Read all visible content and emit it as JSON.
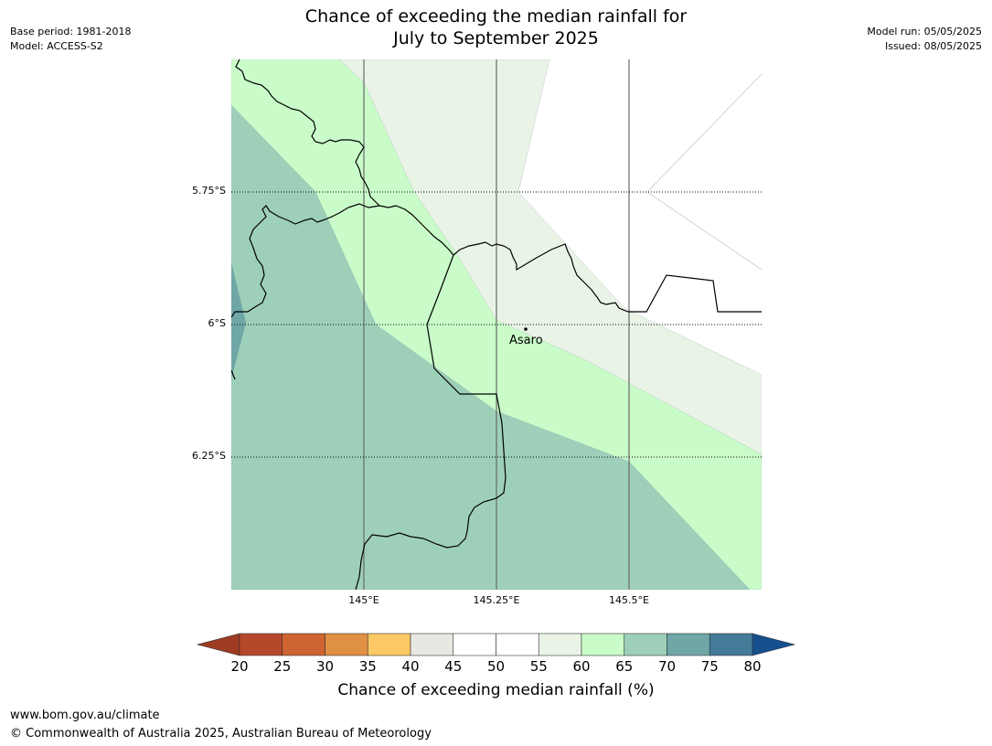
{
  "title": {
    "line1": "Chance of exceeding the median rainfall for",
    "line2": "July to September 2025"
  },
  "meta_left": {
    "base_period": "Base period: 1981-2018",
    "model": "Model: ACCESS-S2"
  },
  "meta_right": {
    "model_run": "Model run: 05/05/2025",
    "issued": "Issued: 08/05/2025"
  },
  "map": {
    "lat_labels": [
      "5.75°S",
      "6°S",
      "6.25°S"
    ],
    "lon_labels": [
      "145°E",
      "145.25°E",
      "145.5°E"
    ],
    "place_name": "Asaro"
  },
  "colorbar": {
    "ticks": [
      "20",
      "25",
      "30",
      "35",
      "40",
      "45",
      "50",
      "55",
      "60",
      "65",
      "70",
      "75",
      "80"
    ],
    "colors": [
      "#9e3b22",
      "#b5482a",
      "#cd6431",
      "#e09044",
      "#fdc965",
      "#e8e7e2",
      "#ffffff",
      "#ffffff",
      "#e9f4e7",
      "#c9fcc8",
      "#9ed0b9",
      "#6fa6a6",
      "#437b99",
      "#154f8e"
    ],
    "label": "Chance of exceeding median rainfall (%)"
  },
  "footer": {
    "url": "www.bom.gov.au/climate",
    "copyright": "© Commonwealth of Australia 2025, Australian Bureau of Meteorology"
  }
}
